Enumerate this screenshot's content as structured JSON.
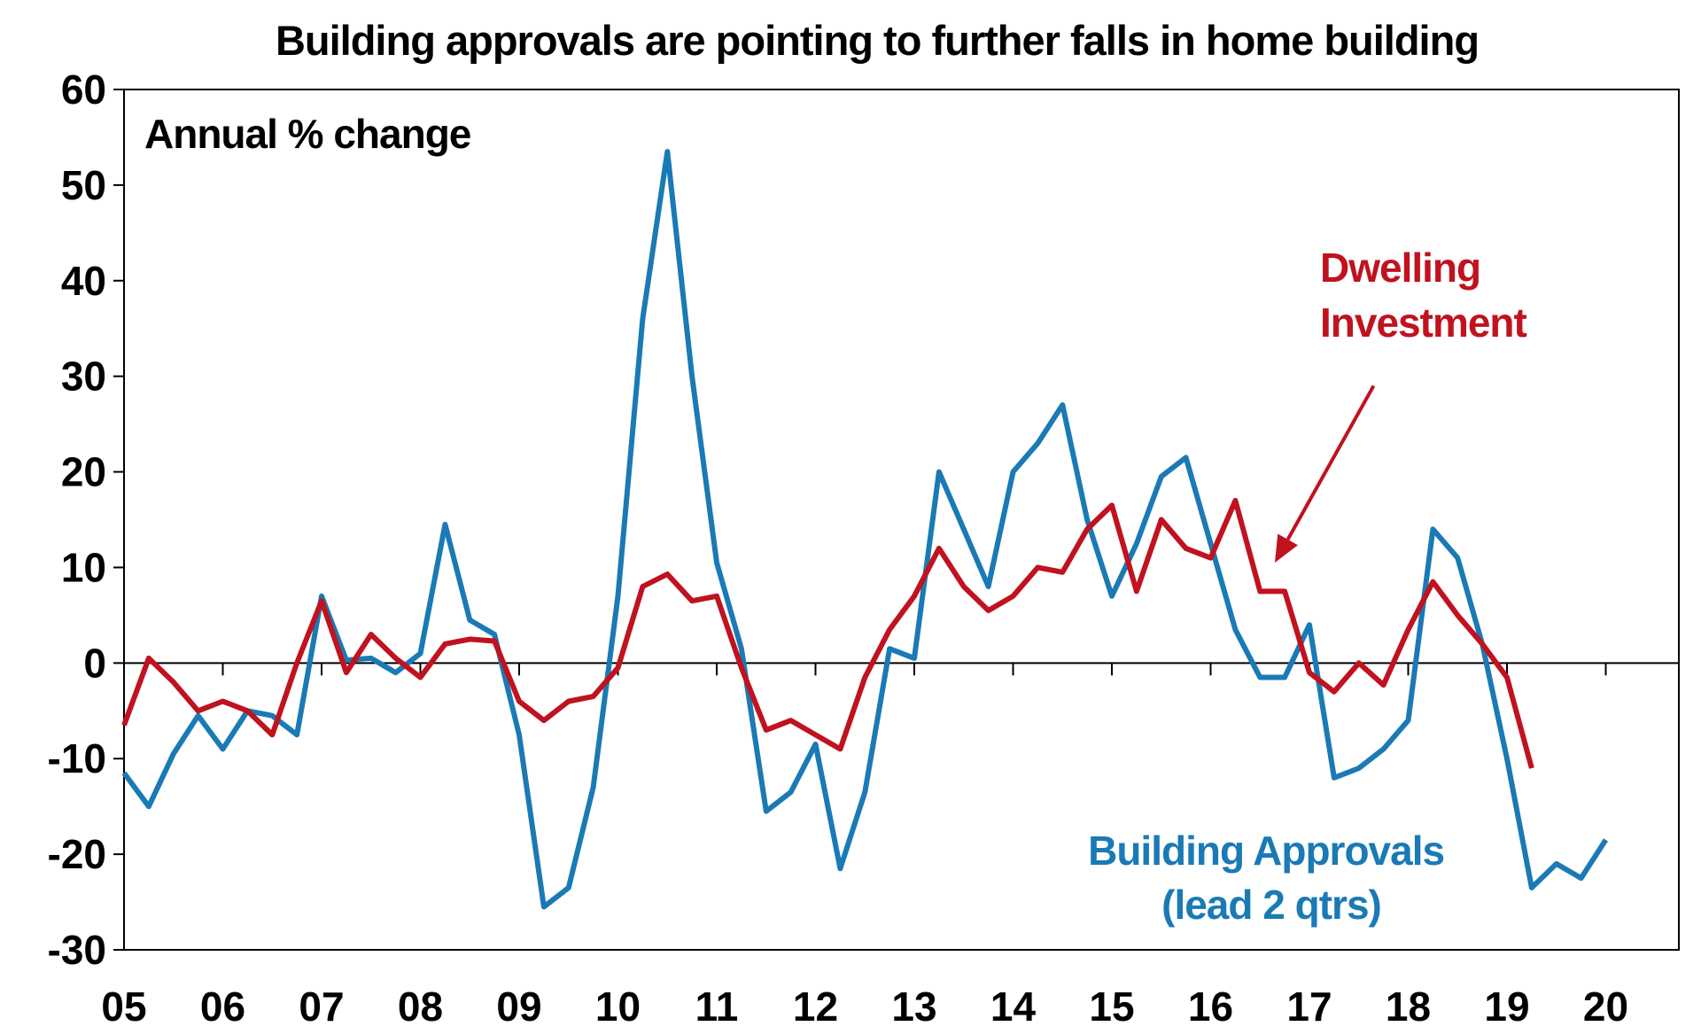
{
  "chart_data": {
    "type": "line",
    "title": "Building approvals are pointing to further falls in home building",
    "subtitle": "Annual % change",
    "xlabel": "",
    "ylabel": "",
    "x_tick_labels": [
      "05",
      "06",
      "07",
      "08",
      "09",
      "10",
      "11",
      "12",
      "13",
      "14",
      "15",
      "16",
      "17",
      "18",
      "19",
      "20"
    ],
    "x_range": [
      2005.0,
      2020.6
    ],
    "ylim": [
      -30,
      60
    ],
    "y_ticks": [
      -30,
      -20,
      -10,
      0,
      10,
      20,
      30,
      40,
      50,
      60
    ],
    "grid": false,
    "zero_line": true,
    "colors": {
      "approvals": "#1a7ab5",
      "investment": "#c0121f",
      "arrow": "#c0121f"
    },
    "series": [
      {
        "name": "Building Approvals (lead 2 qtrs)",
        "label_lines": [
          "Building Approvals",
          "(lead 2 qtrs)"
        ],
        "color": "#1a7ab5",
        "x": [
          2005.0,
          2005.25,
          2005.5,
          2005.75,
          2006.0,
          2006.25,
          2006.5,
          2006.75,
          2007.0,
          2007.25,
          2007.5,
          2007.75,
          2008.0,
          2008.25,
          2008.5,
          2008.75,
          2009.0,
          2009.25,
          2009.5,
          2009.75,
          2010.0,
          2010.25,
          2010.5,
          2010.75,
          2011.0,
          2011.25,
          2011.5,
          2011.75,
          2012.0,
          2012.25,
          2012.5,
          2012.75,
          2013.0,
          2013.25,
          2013.5,
          2013.75,
          2014.0,
          2014.25,
          2014.5,
          2014.75,
          2015.0,
          2015.25,
          2015.5,
          2015.75,
          2016.0,
          2016.25,
          2016.5,
          2016.75,
          2017.0,
          2017.25,
          2017.5,
          2017.75,
          2018.0,
          2018.25,
          2018.5,
          2018.75,
          2019.0,
          2019.25,
          2019.5,
          2019.75,
          2020.0
        ],
        "values": [
          -11.5,
          -15,
          -9.5,
          -5.5,
          -9,
          -5,
          -5.5,
          -7.5,
          7,
          0.3,
          0.5,
          -1,
          1,
          14.5,
          4.5,
          3,
          -7.5,
          -25.5,
          -23.5,
          -13,
          7,
          36,
          53.5,
          30,
          10.5,
          1.5,
          -15.5,
          -13.5,
          -8.5,
          -21.5,
          -13.5,
          1.5,
          0.5,
          20,
          14,
          8,
          20,
          23,
          27,
          15,
          7,
          12.5,
          19.5,
          21.5,
          12.5,
          3.5,
          -1.5,
          -1.5,
          4,
          -12,
          -11,
          -9,
          -6,
          14,
          11,
          2,
          -10,
          -23.5,
          -21,
          -22.5,
          -18.5
        ]
      },
      {
        "name": "Dwelling Investment",
        "label_lines": [
          "Dwelling",
          "Investment"
        ],
        "color": "#c0121f",
        "x": [
          2005.0,
          2005.25,
          2005.5,
          2005.75,
          2006.0,
          2006.25,
          2006.5,
          2006.75,
          2007.0,
          2007.25,
          2007.5,
          2007.75,
          2008.0,
          2008.25,
          2008.5,
          2008.75,
          2009.0,
          2009.25,
          2009.5,
          2009.75,
          2010.0,
          2010.25,
          2010.5,
          2010.75,
          2011.0,
          2011.25,
          2011.5,
          2011.75,
          2012.0,
          2012.25,
          2012.5,
          2012.75,
          2013.0,
          2013.25,
          2013.5,
          2013.75,
          2014.0,
          2014.25,
          2014.5,
          2014.75,
          2015.0,
          2015.25,
          2015.5,
          2015.75,
          2016.0,
          2016.25,
          2016.5,
          2016.75,
          2017.0,
          2017.25,
          2017.5,
          2017.75,
          2018.0,
          2018.25,
          2018.5,
          2018.75,
          2019.0,
          2019.25
        ],
        "values": [
          -6.5,
          0.5,
          -2,
          -5,
          -4,
          -5,
          -7.5,
          0,
          6.5,
          -1,
          3,
          0.5,
          -1.5,
          2,
          2.5,
          2.3,
          -4,
          -6,
          -4,
          -3.5,
          -0.5,
          8,
          9.3,
          6.5,
          7,
          -0.5,
          -7,
          -6,
          -7.5,
          -9,
          -1.5,
          3.5,
          7,
          12,
          8,
          5.5,
          7,
          10,
          9.5,
          14,
          16.5,
          7.5,
          15,
          12,
          11,
          17,
          7.5,
          7.5,
          -1,
          -3,
          0,
          -2.3,
          3.5,
          8.5,
          5,
          2,
          -1.5,
          -11
        ]
      }
    ],
    "annotations": [
      {
        "text": "Dwelling Investment",
        "type": "arrow",
        "arrow_to": {
          "x": 2016.65,
          "y": 10.5
        },
        "arrow_from": {
          "x": 2017.65,
          "y": 29
        }
      }
    ]
  }
}
